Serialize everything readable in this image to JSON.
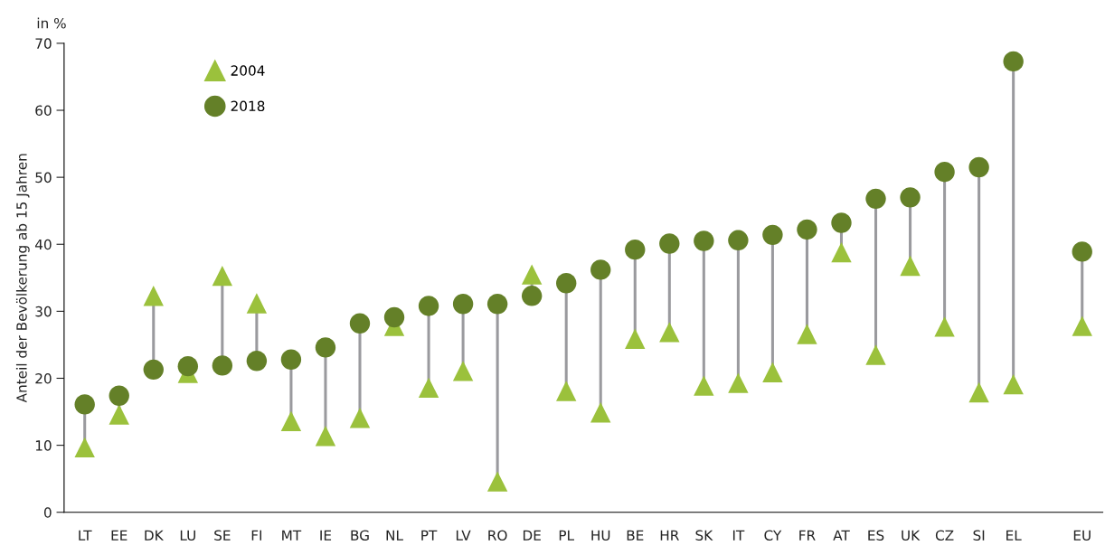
{
  "chart_data": {
    "type": "scatter",
    "ylabel": "Anteil der Bevölkerung ab 15 Jahren",
    "annotations": [
      "in %"
    ],
    "categories": [
      "LT",
      "EE",
      "DK",
      "LU",
      "SE",
      "FI",
      "MT",
      "IE",
      "BG",
      "NL",
      "PT",
      "LV",
      "RO",
      "DE",
      "PL",
      "HU",
      "BE",
      "HR",
      "SK",
      "IT",
      "CY",
      "FR",
      "AT",
      "ES",
      "UK",
      "CZ",
      "SI",
      "EL",
      null,
      "EU"
    ],
    "series": [
      {
        "name": "2004",
        "color": "#9bc13c",
        "marker": "triangle",
        "values": [
          9.7,
          14.6,
          32.3,
          20.8,
          35.3,
          31.2,
          13.6,
          11.4,
          14.1,
          27.8,
          18.6,
          21.1,
          4.6,
          35.5,
          18.1,
          14.9,
          25.9,
          26.9,
          18.9,
          19.3,
          20.9,
          26.6,
          38.8,
          23.5,
          36.8,
          27.7,
          17.9,
          19.1,
          null,
          27.8
        ]
      },
      {
        "name": "2018",
        "color": "#648028",
        "marker": "circle",
        "values": [
          16.1,
          17.4,
          21.3,
          21.8,
          21.9,
          22.6,
          22.8,
          24.6,
          28.2,
          29.1,
          30.8,
          31.1,
          31.1,
          32.3,
          34.2,
          36.2,
          39.2,
          40.1,
          40.5,
          40.6,
          41.4,
          42.2,
          43.2,
          46.8,
          47.0,
          50.8,
          51.5,
          67.3,
          null,
          38.9
        ]
      }
    ],
    "ylim": [
      0,
      70
    ],
    "yticks": [
      0,
      10,
      20,
      30,
      40,
      50,
      60,
      70
    ],
    "legend": "top left",
    "grid": false
  }
}
